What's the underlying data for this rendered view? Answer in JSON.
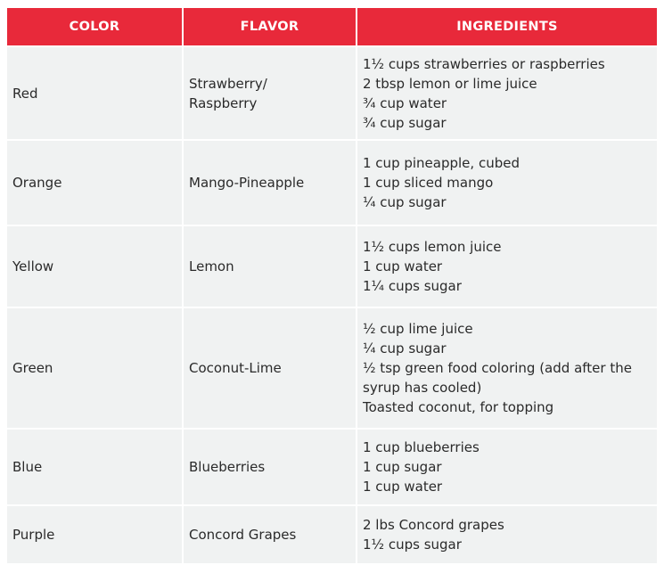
{
  "headers": [
    "COLOR",
    "FLAVOR",
    "INGREDIENTS"
  ],
  "colors": {
    "header_bg": "#e8293a",
    "cell_bg": "#f0f2f2"
  },
  "rows": [
    {
      "color": "Red",
      "flavor": [
        "Strawberry/",
        "Raspberry"
      ],
      "ingredients": [
        "1½ cups strawberries or raspberries",
        "2 tbsp lemon or lime juice",
        "¾ cup water",
        "¾ cup sugar"
      ]
    },
    {
      "color": "Orange",
      "flavor": [
        "Mango-Pineapple"
      ],
      "ingredients": [
        "1 cup pineapple, cubed",
        "1 cup sliced mango",
        "¼ cup sugar"
      ]
    },
    {
      "color": "Yellow",
      "flavor": [
        "Lemon"
      ],
      "ingredients": [
        "1½ cups lemon juice",
        "1 cup water",
        "1¼ cups sugar"
      ]
    },
    {
      "color": "Green",
      "flavor": [
        "Coconut-Lime"
      ],
      "ingredients": [
        "½ cup lime juice",
        "¼ cup sugar",
        "½ tsp green food coloring (add after the",
        "syrup has cooled)",
        "Toasted coconut, for topping"
      ]
    },
    {
      "color": "Blue",
      "flavor": [
        "Blueberries"
      ],
      "ingredients": [
        "1 cup blueberries",
        "1 cup sugar",
        "1 cup water"
      ]
    },
    {
      "color": "Purple",
      "flavor": [
        "Concord Grapes"
      ],
      "ingredients": [
        "2 lbs Concord grapes",
        "1½ cups sugar"
      ]
    }
  ]
}
